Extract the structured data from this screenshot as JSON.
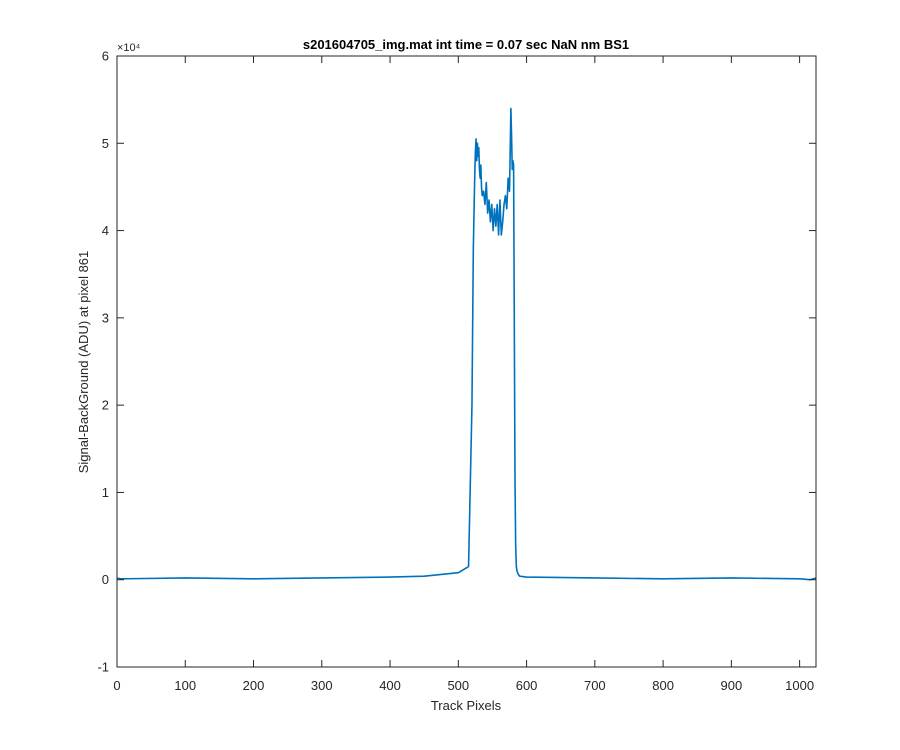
{
  "chart_data": {
    "type": "line",
    "title": "s201604705_img.mat int time = 0.07 sec  NaN nm BS1",
    "xlabel": "Track Pixels",
    "ylabel": "Signal-BackGround (ADU) at pixel 861",
    "y_exponent_label": "×10⁴",
    "xlim": [
      0,
      1024
    ],
    "ylim": [
      -1,
      6
    ],
    "y_scale_factor": 10000,
    "grid": false,
    "x_ticks": [
      0,
      100,
      200,
      300,
      400,
      500,
      600,
      700,
      800,
      900,
      1000
    ],
    "y_ticks": [
      -1,
      0,
      1,
      2,
      3,
      4,
      5,
      6
    ],
    "x_tick_labels": [
      "0",
      "100",
      "200",
      "300",
      "400",
      "500",
      "600",
      "700",
      "800",
      "900",
      "1000"
    ],
    "y_tick_labels": [
      "-1",
      "0",
      "1",
      "2",
      "3",
      "4",
      "5",
      "6"
    ],
    "series": [
      {
        "color": "#0072BD",
        "x": [
          0,
          5,
          100,
          200,
          300,
          400,
          450,
          500,
          515,
          520,
          522,
          524,
          525,
          526,
          527,
          528,
          529,
          530,
          531,
          532,
          533,
          534,
          535,
          537,
          539,
          541,
          543,
          545,
          547,
          549,
          551,
          553,
          555,
          557,
          559,
          561,
          563,
          565,
          567,
          569,
          571,
          573,
          575,
          576,
          577,
          578,
          579,
          580,
          581,
          582,
          583,
          584,
          585,
          586,
          588,
          590,
          600,
          700,
          800,
          900,
          1000,
          1015,
          1024
        ],
        "y": [
          0.02,
          0.01,
          0.02,
          0.01,
          0.02,
          0.03,
          0.04,
          0.08,
          0.15,
          2.0,
          3.8,
          4.6,
          4.9,
          5.05,
          4.8,
          5.0,
          4.85,
          4.95,
          4.7,
          4.6,
          4.75,
          4.5,
          4.4,
          4.45,
          4.3,
          4.55,
          4.2,
          4.35,
          4.1,
          4.3,
          4.0,
          4.25,
          4.05,
          4.3,
          3.95,
          4.35,
          3.95,
          4.1,
          4.3,
          4.4,
          4.25,
          4.6,
          4.45,
          4.9,
          5.4,
          5.1,
          4.7,
          4.8,
          4.75,
          3.0,
          1.2,
          0.4,
          0.15,
          0.1,
          0.06,
          0.04,
          0.03,
          0.02,
          0.01,
          0.02,
          0.01,
          0.0,
          0.02
        ]
      }
    ]
  }
}
